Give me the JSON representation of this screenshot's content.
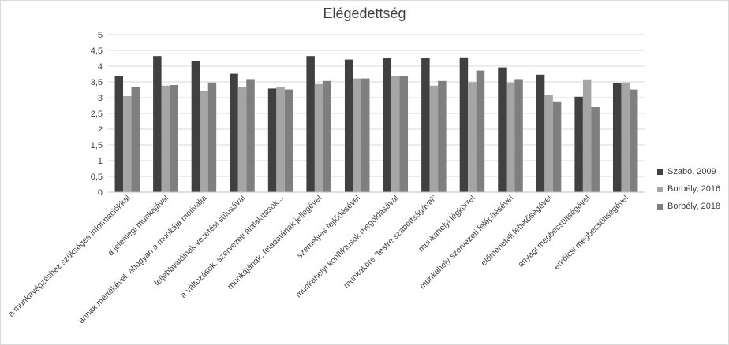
{
  "chart_data": {
    "type": "bar",
    "title": "Elégedettség",
    "xlabel": "",
    "ylabel": "",
    "ylim": [
      0,
      5
    ],
    "yticks": [
      "0",
      "0,5",
      "1",
      "1,5",
      "2",
      "2,5",
      "3",
      "3,5",
      "4",
      "4,5",
      "5"
    ],
    "grid": true,
    "legend_position": "right",
    "categories": [
      "a munkavégzéshez szükséges információkkal",
      "a jelenlegi munkájával",
      "annak mértékével, ahogyan a munkája motiválja",
      "feljebbvalóinak vezetési stílusával",
      "a változások, szervezeti átalakítások...",
      "munkájának, feladatának jellegével",
      "személyes fejlődésével",
      "munkahelyi konfliktusok megoldásával",
      "munkaköre \"testre szabottságával\"",
      "munkahelyi légkörrel",
      "munkahely szervezeti felépítésével",
      "előmeneteli lehetőségével",
      "anyagi megbecsültségével",
      "erkölcsi megbecsültségével"
    ],
    "series": [
      {
        "name": "Szabó, 2009",
        "color": "#404040",
        "values": [
          3.68,
          4.32,
          4.17,
          3.76,
          3.29,
          4.32,
          4.21,
          4.26,
          4.26,
          4.28,
          3.96,
          3.73,
          3.03,
          3.45
        ]
      },
      {
        "name": "Borbély, 2016",
        "color": "#a5a5a5",
        "values": [
          3.05,
          3.38,
          3.22,
          3.33,
          3.35,
          3.43,
          3.61,
          3.7,
          3.38,
          3.49,
          3.48,
          3.08,
          3.58,
          3.48
        ]
      },
      {
        "name": "Borbély, 2018",
        "color": "#7f7f7f",
        "values": [
          3.34,
          3.4,
          3.48,
          3.59,
          3.26,
          3.53,
          3.61,
          3.68,
          3.53,
          3.86,
          3.59,
          2.88,
          2.7,
          3.26
        ]
      }
    ]
  }
}
